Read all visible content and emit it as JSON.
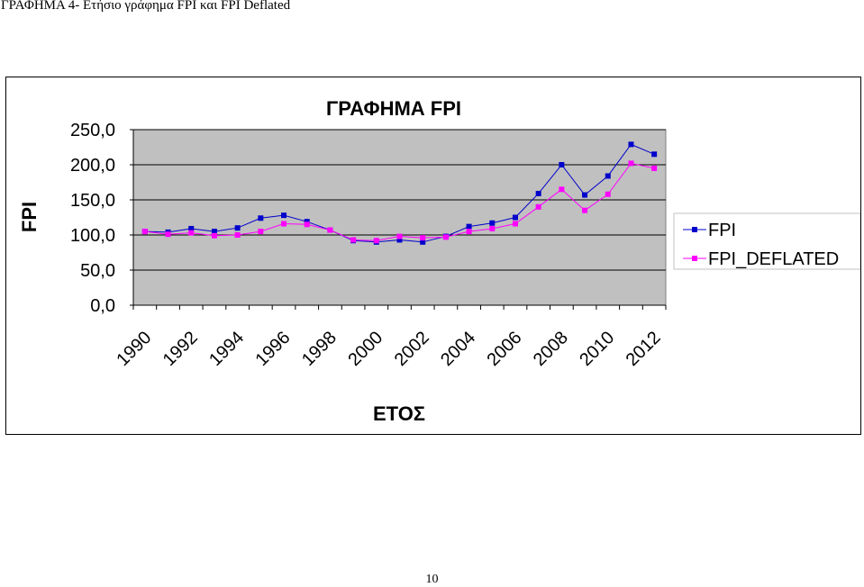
{
  "document": {
    "heading": "ΓΡΑΦΗΜΑ 4- Ετήσιο γράφημα FPI και FPI Deflated",
    "page_number": "10"
  },
  "chart_data": {
    "type": "line",
    "title": "ΓΡΑΦΗΜΑ FPI",
    "xlabel": "ΕΤΟΣ",
    "ylabel": "FPI",
    "x": [
      1990,
      1991,
      1992,
      1993,
      1994,
      1995,
      1996,
      1997,
      1998,
      1999,
      2000,
      2001,
      2002,
      2003,
      2004,
      2005,
      2006,
      2007,
      2008,
      2009,
      2010,
      2011,
      2012
    ],
    "x_tick_labels": [
      "1990",
      "1992",
      "1994",
      "1996",
      "1998",
      "2000",
      "2002",
      "2004",
      "2006",
      "2008",
      "2010",
      "2012"
    ],
    "y_tick_labels": [
      "0,0",
      "50,0",
      "100,0",
      "150,0",
      "200,0",
      "250,0"
    ],
    "ylim": [
      0,
      250
    ],
    "grid": "horizontal",
    "legend": "right",
    "series": [
      {
        "name": "FPI",
        "color": "#0000cc",
        "marker": "square",
        "values": [
          105,
          104,
          109,
          105,
          110,
          124,
          128,
          119,
          107,
          92,
          90,
          93,
          90,
          98,
          112,
          117,
          125,
          159,
          200,
          157,
          184,
          229,
          215
        ]
      },
      {
        "name": "FPI_DEFLATED",
        "color": "#ff00ff",
        "marker": "square",
        "values": [
          105,
          101,
          103,
          99,
          100,
          105,
          116,
          115,
          107,
          93,
          92,
          98,
          96,
          97,
          105,
          109,
          116,
          140,
          165,
          135,
          158,
          202,
          195
        ]
      }
    ]
  }
}
